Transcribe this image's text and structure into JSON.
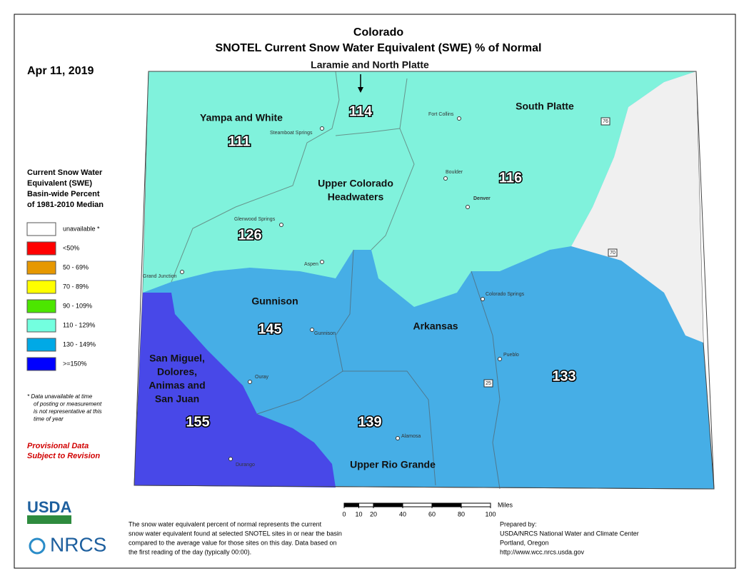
{
  "header": {
    "title": "Colorado",
    "subtitle": "SNOTEL Current Snow Water Equivalent (SWE) % of Normal",
    "date": "Apr 11, 2019"
  },
  "legend": {
    "title": [
      "Current Snow Water",
      "Equivalent (SWE)",
      "Basin-wide Percent",
      "of 1981-2010 Median"
    ],
    "items": [
      {
        "label": "unavailable *",
        "color": "#ffffff"
      },
      {
        "label": "<50%",
        "color": "#ff0000"
      },
      {
        "label": "50 - 69%",
        "color": "#e69800"
      },
      {
        "label": "70 - 89%",
        "color": "#ffff00"
      },
      {
        "label": "90 - 109%",
        "color": "#4ce600"
      },
      {
        "label": "110 - 129%",
        "color": "#73ffdf"
      },
      {
        "label": "130 - 149%",
        "color": "#00a9e6"
      },
      {
        "label": ">=150%",
        "color": "#0000ff"
      }
    ]
  },
  "footnote": [
    "*  Data unavailable at time",
    "of posting or measurement",
    "is not representative at this",
    "time of year"
  ],
  "provisional": [
    "Provisional Data",
    "Subject to Revision"
  ],
  "basins": [
    {
      "name": [
        "Yampa and White"
      ],
      "value": 111
    },
    {
      "name": [
        "Laramie and North Platte"
      ],
      "value": 114
    },
    {
      "name": [
        "South Platte"
      ],
      "value": 116
    },
    {
      "name": [
        "Upper Colorado",
        "Headwaters"
      ],
      "value": 126
    },
    {
      "name": [
        "Gunnison"
      ],
      "value": 145
    },
    {
      "name": [
        "Arkansas"
      ],
      "value": 133
    },
    {
      "name": [
        "San Miguel,",
        "Dolores,",
        "Animas and",
        "San Juan"
      ],
      "value": 155
    },
    {
      "name": [
        "Upper Rio Grande"
      ],
      "value": 139
    }
  ],
  "cities": [
    "Fort Collins",
    "Steamboat Springs",
    "Boulder",
    "Denver",
    "Glenwood Springs",
    "Aspen",
    "Grand Junction",
    "Colorado Springs",
    "Gunnison",
    "Pueblo",
    "Ouray",
    "Alamosa",
    "Durango"
  ],
  "highways": [
    "76",
    "70",
    "25"
  ],
  "scale": {
    "ticks": [
      0,
      10,
      20,
      40,
      60,
      80,
      100
    ],
    "unit": "Miles"
  },
  "description": [
    "The snow water equivalent percent of normal represents the current",
    "snow water equivalent found at selected SNOTEL sites in or near the basin",
    "compared to the average value for those sites on this day. Data based on",
    "the first reading of the day (typically 00:00)."
  ],
  "prepared": [
    "Prepared by:",
    "USDA/NRCS National Water and Climate Center",
    "Portland, Oregon",
    "http://www.wcc.nrcs.usda.gov"
  ],
  "logos": [
    "USDA",
    "NRCS"
  ]
}
